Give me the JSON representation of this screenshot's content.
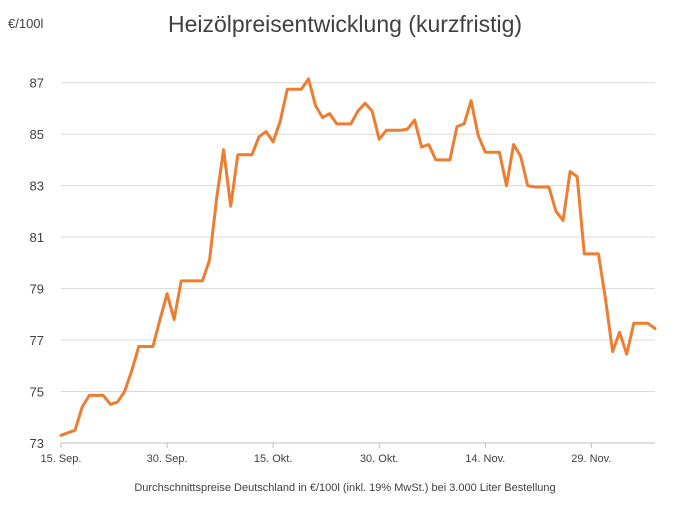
{
  "chart_data": {
    "type": "line",
    "title": "Heizölpreisentwicklung (kurzfristig)",
    "unit_label": "€/100l",
    "caption": "Durchschnittspreise Deutschland in €/100l (inkl. 19% MwSt.) bei 3.000 Liter Bestellung",
    "ylim": [
      73,
      88
    ],
    "yticks": [
      "73",
      "75",
      "77",
      "79",
      "81",
      "83",
      "85",
      "87"
    ],
    "xticks": [
      {
        "label": "15. Sep.",
        "x": 0
      },
      {
        "label": "30. Sep.",
        "x": 15
      },
      {
        "label": "15. Okt.",
        "x": 30
      },
      {
        "label": "30. Okt.",
        "x": 45
      },
      {
        "label": "14. Nov.",
        "x": 60
      },
      {
        "label": "29. Nov.",
        "x": 75
      }
    ],
    "xlim": [
      0,
      84
    ],
    "grid": true,
    "line_color": "#ED7D31",
    "series": [
      {
        "x": [
          0,
          1,
          2,
          3,
          4,
          5,
          6,
          7,
          8,
          9,
          10,
          11,
          12,
          13,
          14,
          15,
          16,
          17,
          18,
          19,
          20,
          21,
          22,
          23,
          24,
          25,
          26,
          27,
          28,
          29,
          30,
          31,
          32,
          33,
          34,
          35,
          36,
          37,
          38,
          39,
          40,
          41,
          42,
          43,
          44,
          45,
          46,
          47,
          48,
          49,
          50,
          51,
          52,
          53,
          54,
          55,
          56,
          57,
          58,
          59,
          60,
          61,
          62,
          63,
          64,
          65,
          66,
          67,
          68,
          69,
          70,
          71,
          72,
          73,
          74,
          75,
          76,
          77,
          78,
          79,
          80,
          81,
          82,
          83,
          84
        ],
        "values": [
          73.3,
          73.4,
          73.5,
          74.4,
          74.85,
          74.85,
          74.85,
          74.5,
          74.6,
          75.0,
          75.8,
          76.75,
          76.75,
          76.75,
          77.8,
          78.8,
          77.8,
          79.3,
          79.3,
          79.3,
          79.3,
          80.1,
          82.5,
          84.4,
          82.2,
          84.2,
          84.2,
          84.2,
          84.9,
          85.1,
          84.7,
          85.5,
          86.75,
          86.75,
          86.75,
          87.15,
          86.1,
          85.65,
          85.8,
          85.4,
          85.4,
          85.4,
          85.9,
          86.2,
          85.9,
          84.8,
          85.15,
          85.15,
          85.15,
          85.2,
          85.55,
          84.5,
          84.6,
          84.0,
          84.0,
          84.0,
          85.3,
          85.4,
          86.3,
          84.95,
          84.3,
          84.3,
          84.3,
          83.0,
          84.6,
          84.15,
          83.0,
          82.95,
          82.95,
          82.95,
          82.0,
          81.65,
          83.55,
          83.35,
          80.35,
          80.35,
          80.35,
          78.6,
          76.55,
          77.3,
          76.45,
          77.65,
          77.65,
          77.65,
          77.45
        ]
      }
    ]
  }
}
